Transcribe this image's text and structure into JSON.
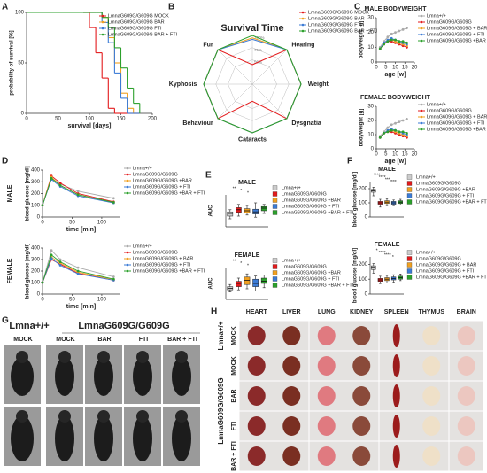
{
  "chart_data": [
    {
      "type": "step",
      "panel": "A",
      "xlabel": "survival [days]",
      "ylabel": "probability of survival [%]",
      "x": [
        0,
        90,
        100,
        110,
        120,
        130,
        140,
        150,
        160,
        170,
        180
      ],
      "xlim": [
        0,
        200
      ],
      "xticks": [
        0,
        50,
        100,
        150,
        200
      ],
      "ylim": [
        0,
        100
      ],
      "yticks": [
        0,
        50,
        100
      ],
      "series": [
        {
          "name": "LmnaG609G/G609G MOCK",
          "color": "#e31a1c",
          "values": [
            100,
            100,
            85,
            60,
            35,
            5,
            0,
            0,
            0,
            0,
            0
          ]
        },
        {
          "name": "LmnaG609G/G609G BAR",
          "color": "#f0a020",
          "values": [
            100,
            100,
            100,
            100,
            95,
            75,
            50,
            20,
            5,
            0,
            0
          ]
        },
        {
          "name": "LmnaG609G/G609G FTI",
          "color": "#3b7bd6",
          "values": [
            100,
            100,
            100,
            100,
            90,
            70,
            40,
            15,
            0,
            0,
            0
          ]
        },
        {
          "name": "LmnaG609G/G609G BAR + FTI",
          "color": "#2ca02c",
          "values": [
            100,
            100,
            100,
            100,
            95,
            85,
            65,
            45,
            25,
            10,
            0
          ]
        }
      ]
    },
    {
      "type": "radar",
      "panel": "B",
      "categories": [
        "Survival Time",
        "Hearing",
        "Weight",
        "Dysgnatia",
        "Cataracts",
        "Behaviour",
        "Kyphosis",
        "Fur"
      ],
      "rlim": [
        0,
        100
      ],
      "rticks": [
        {
          "value": 50,
          "label": "50%"
        },
        {
          "value": 75,
          "label": "75%"
        },
        {
          "value": 100,
          "label": "100%"
        }
      ],
      "series": [
        {
          "name": "LmnaG609G/G609G MOCK",
          "color": "#e31a1c",
          "values": [
            40,
            100,
            100,
            100,
            35,
            100,
            100,
            100
          ]
        },
        {
          "name": "LmnaG609G/G609G BAR",
          "color": "#f0a020",
          "values": [
            95,
            100,
            100,
            100,
            100,
            100,
            100,
            100
          ]
        },
        {
          "name": "LmnaG609G/G609G FTI",
          "color": "#3b7bd6",
          "values": [
            92,
            100,
            100,
            100,
            100,
            100,
            100,
            100
          ]
        },
        {
          "name": "LmnaG609G/G609G BAR + FTI",
          "color": "#2ca02c",
          "values": [
            100,
            100,
            100,
            100,
            100,
            100,
            100,
            100
          ]
        }
      ]
    },
    {
      "type": "line",
      "panel": "C",
      "title": "MALE BODYWEIGHT",
      "xlabel": "age [w]",
      "ylabel": "bodyweight [g]",
      "x": [
        2,
        4,
        6,
        8,
        10,
        12,
        14,
        16
      ],
      "xlim": [
        0,
        20
      ],
      "xticks": [
        0,
        5,
        10,
        15,
        20
      ],
      "ylim": [
        0,
        30
      ],
      "yticks": [
        0,
        10,
        20,
        30
      ],
      "series": [
        {
          "name": "Lmna+/+",
          "color": "#aaaaaa",
          "values": [
            10,
            14,
            17,
            19,
            20,
            21,
            22,
            23
          ]
        },
        {
          "name": "LmnaG609G/G609G",
          "color": "#e31a1c",
          "values": [
            9,
            12,
            14,
            14,
            13,
            12,
            11,
            10
          ]
        },
        {
          "name": "LmnaG609G/G609G + BAR",
          "color": "#f0a020",
          "values": [
            9,
            12,
            15,
            15,
            14,
            13,
            12,
            11
          ]
        },
        {
          "name": "LmnaG609G/G609G + FTI",
          "color": "#3b7bd6",
          "values": [
            9,
            13,
            15,
            16,
            15,
            14,
            13,
            12
          ]
        },
        {
          "name": "LmnaG609G/G609G +BAR + FTI",
          "color": "#2ca02c",
          "values": [
            9,
            12,
            14,
            15,
            15,
            14,
            14,
            13
          ]
        }
      ]
    },
    {
      "type": "line",
      "title": "FEMALE BODYWEIGHT",
      "xlabel": "age [w]",
      "ylabel": "bodyweight [g]",
      "x": [
        2,
        4,
        6,
        8,
        10,
        12,
        14,
        16
      ],
      "xlim": [
        0,
        20
      ],
      "xticks": [
        0,
        5,
        10,
        15,
        20
      ],
      "ylim": [
        0,
        30
      ],
      "yticks": [
        0,
        10,
        20,
        30
      ],
      "series": [
        {
          "name": "Lmna+/+",
          "color": "#aaaaaa",
          "values": [
            9,
            12,
            15,
            17,
            18,
            19,
            20,
            21
          ]
        },
        {
          "name": "LmnaG609G/G609G",
          "color": "#e31a1c",
          "values": [
            8,
            11,
            12,
            12,
            11,
            10,
            9,
            8
          ]
        },
        {
          "name": "LmnaG609G/G609G + BAR",
          "color": "#f0a020",
          "values": [
            8,
            11,
            13,
            13,
            12,
            11,
            10,
            9
          ]
        },
        {
          "name": "LmnaG609G/G609G + FTI",
          "color": "#3b7bd6",
          "values": [
            8,
            11,
            13,
            14,
            13,
            12,
            11,
            10
          ]
        },
        {
          "name": "LmnaG609G/G609G +BAR + FTI",
          "color": "#2ca02c",
          "values": [
            8,
            11,
            12,
            13,
            13,
            12,
            12,
            11
          ]
        }
      ]
    },
    {
      "type": "line",
      "panel": "D",
      "subtitle": "MALE",
      "xlabel": "time [min]",
      "ylabel": "blood glucose [mg/dl]",
      "x": [
        0,
        15,
        30,
        60,
        120
      ],
      "xlim": [
        0,
        130
      ],
      "xticks": [
        0,
        50,
        100
      ],
      "ylim": [
        0,
        400
      ],
      "yticks": [
        0,
        100,
        200,
        300,
        400
      ],
      "series": [
        {
          "name": "Lmna+/+",
          "color": "#aaaaaa",
          "values": [
            100,
            330,
            280,
            220,
            160
          ]
        },
        {
          "name": "LmnaG609G/G609G",
          "color": "#e31a1c",
          "values": [
            100,
            350,
            290,
            200,
            130
          ]
        },
        {
          "name": "LmnaG609G/G609G +BAR",
          "color": "#f0a020",
          "values": [
            100,
            340,
            270,
            190,
            120
          ]
        },
        {
          "name": "LmnaG609G/G609G + FTI",
          "color": "#3b7bd6",
          "values": [
            100,
            320,
            260,
            180,
            120
          ]
        },
        {
          "name": "LmnaG609G/G609G +BAR + FTI",
          "color": "#2ca02c",
          "values": [
            100,
            330,
            270,
            190,
            125
          ]
        }
      ]
    },
    {
      "type": "line",
      "subtitle": "FEMALE",
      "xlabel": "time [min]",
      "ylabel": "blood glucose [mg/dl]",
      "x": [
        0,
        15,
        30,
        60,
        120
      ],
      "xlim": [
        0,
        130
      ],
      "xticks": [
        0,
        50,
        100
      ],
      "ylim": [
        0,
        400
      ],
      "yticks": [
        0,
        100,
        200,
        300,
        400
      ],
      "series": [
        {
          "name": "Lmna+/+",
          "color": "#aaaaaa",
          "values": [
            100,
            380,
            300,
            230,
            150
          ]
        },
        {
          "name": "LmnaG609G/G609G",
          "color": "#e31a1c",
          "values": [
            100,
            300,
            260,
            180,
            120
          ]
        },
        {
          "name": "LmnaG609G/G609G + BAR",
          "color": "#f0a020",
          "values": [
            100,
            320,
            270,
            190,
            125
          ]
        },
        {
          "name": "LmnaG609G/G609G + FTI",
          "color": "#3b7bd6",
          "values": [
            100,
            310,
            250,
            175,
            120
          ]
        },
        {
          "name": "LmnaG609G/G609G +BAR + FTI",
          "color": "#2ca02c",
          "values": [
            100,
            340,
            280,
            200,
            130
          ]
        }
      ]
    },
    {
      "type": "box",
      "panel": "E",
      "title": "MALE",
      "ylabel": "AUC",
      "ylim": [
        0,
        60000
      ],
      "annotations": [
        "**",
        "*",
        "*"
      ],
      "series": [
        {
          "name": "Lmna+/+",
          "color": "#cccccc",
          "min": 15000,
          "q1": 20000,
          "median": 25000,
          "q3": 28000,
          "max": 32000
        },
        {
          "name": "LmnaG609G/G609G",
          "color": "#e31a1c",
          "min": 20000,
          "q1": 27000,
          "median": 32000,
          "q3": 36000,
          "max": 42000
        },
        {
          "name": "LmnaG609G/G609G +BAR",
          "color": "#f0a020",
          "min": 22000,
          "q1": 26000,
          "median": 30000,
          "q3": 34000,
          "max": 40000
        },
        {
          "name": "LmnaG609G/G609G + FTI",
          "color": "#3b7bd6",
          "min": 18000,
          "q1": 24000,
          "median": 28000,
          "q3": 33000,
          "max": 45000
        },
        {
          "name": "LmnaG609G/G609G +BAR + FTI",
          "color": "#2ca02c",
          "min": 25000,
          "q1": 30000,
          "median": 35000,
          "q3": 38000,
          "max": 42000
        }
      ]
    },
    {
      "type": "box",
      "title": "FEMALE",
      "ylabel": "AUC",
      "ylim": [
        0,
        60000
      ],
      "annotations": [
        "**",
        "*",
        "*"
      ],
      "series": [
        {
          "name": "Lmna+/+",
          "color": "#cccccc",
          "min": 14000,
          "q1": 18000,
          "median": 21000,
          "q3": 24000,
          "max": 28000
        },
        {
          "name": "LmnaG609G/G609G",
          "color": "#e31a1c",
          "min": 18000,
          "q1": 24000,
          "median": 30000,
          "q3": 34000,
          "max": 40000
        },
        {
          "name": "LmnaG609G/G609G +BAR",
          "color": "#f0a020",
          "min": 20000,
          "q1": 28000,
          "median": 36000,
          "q3": 42000,
          "max": 48000
        },
        {
          "name": "LmnaG609G/G609G + FTI",
          "color": "#3b7bd6",
          "min": 16000,
          "q1": 24000,
          "median": 30000,
          "q3": 38000,
          "max": 44000
        },
        {
          "name": "LmnaG609G/G609G +BAR + FTI",
          "color": "#2ca02c",
          "min": 22000,
          "q1": 30000,
          "median": 34000,
          "q3": 40000,
          "max": 46000
        }
      ]
    },
    {
      "type": "box",
      "panel": "F",
      "title": "MALE",
      "ylabel": "blood glucose [mg/dl]",
      "ylim": [
        0,
        250
      ],
      "yticks": [
        0,
        100,
        200
      ],
      "annotations": [
        "****",
        "****",
        "***",
        "****"
      ],
      "series": [
        {
          "name": "Lmna+/+",
          "color": "#cccccc",
          "min": 150,
          "q1": 175,
          "median": 185,
          "q3": 195,
          "max": 210
        },
        {
          "name": "LmnaG609G/G609G",
          "color": "#e31a1c",
          "min": 70,
          "q1": 90,
          "median": 100,
          "q3": 110,
          "max": 125
        },
        {
          "name": "LmnaG609G/G609G +BAR",
          "color": "#f0a020",
          "min": 80,
          "q1": 95,
          "median": 105,
          "q3": 115,
          "max": 130
        },
        {
          "name": "LmnaG609G/G609G + FTI",
          "color": "#3b7bd6",
          "min": 80,
          "q1": 90,
          "median": 100,
          "q3": 110,
          "max": 120
        },
        {
          "name": "LmnaG609G/G609G +BAR + FTI",
          "color": "#2ca02c",
          "min": 85,
          "q1": 95,
          "median": 105,
          "q3": 115,
          "max": 125
        }
      ]
    },
    {
      "type": "box",
      "title": "FEMALE",
      "ylabel": "blood glucose [mg/dl]",
      "ylim": [
        0,
        250
      ],
      "yticks": [
        0,
        100,
        200
      ],
      "annotations": [
        "*",
        "****",
        "****",
        "*"
      ],
      "series": [
        {
          "name": "Lmna+/+",
          "color": "#cccccc",
          "min": 140,
          "q1": 165,
          "median": 180,
          "q3": 190,
          "max": 205
        },
        {
          "name": "LmnaG609G/G609G",
          "color": "#e31a1c",
          "min": 70,
          "q1": 85,
          "median": 95,
          "q3": 105,
          "max": 120
        },
        {
          "name": "LmnaG609G/G609G + BAR",
          "color": "#f0a020",
          "min": 75,
          "q1": 90,
          "median": 100,
          "q3": 110,
          "max": 125
        },
        {
          "name": "LmnaG609G/G609G + FTI",
          "color": "#3b7bd6",
          "min": 80,
          "q1": 95,
          "median": 105,
          "q3": 115,
          "max": 130
        },
        {
          "name": "LmnaG609G/G609G +BAR + FTI",
          "color": "#2ca02c",
          "min": 90,
          "q1": 100,
          "median": 110,
          "q3": 120,
          "max": 135
        }
      ]
    }
  ],
  "photo_panels": [
    {
      "panel": "G",
      "group_labels": [
        "Lmna+/+",
        "LmnaG609G/G609G"
      ],
      "columns": [
        "MOCK",
        "MOCK",
        "BAR",
        "FTI",
        "BAR + FTI"
      ]
    },
    {
      "panel": "H",
      "group_labels": [
        "Lmna+/+",
        "LmnaG609G/G609G"
      ],
      "columns": [
        "HEART",
        "LIVER",
        "LUNG",
        "KIDNEY",
        "SPLEEN",
        "THYMUS",
        "BRAIN"
      ],
      "rows": [
        "MOCK",
        "MOCK",
        "BAR",
        "FTI",
        "BAR + FTI"
      ]
    }
  ]
}
